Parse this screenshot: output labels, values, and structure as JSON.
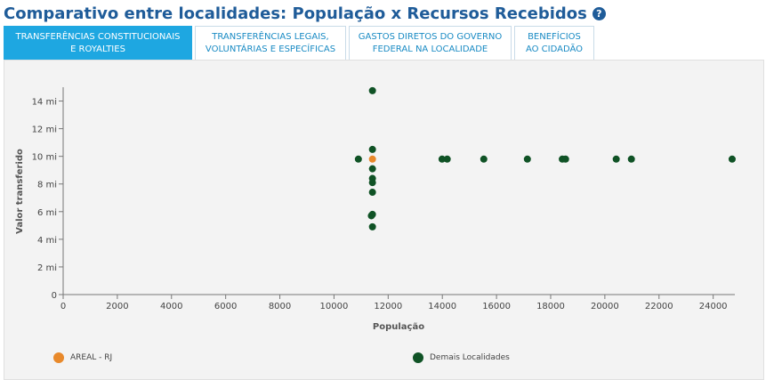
{
  "header": {
    "title": "Comparativo entre localidades: População x Recursos Recebidos",
    "help_icon": "question-circle-icon"
  },
  "tabs": [
    {
      "label": "TRANSFERÊNCIAS CONSTITUCIONAIS\nE ROYALTIES",
      "active": true
    },
    {
      "label": "TRANSFERÊNCIAS LEGAIS,\nVOLUNTÁRIAS E ESPECÍFICAS",
      "active": false
    },
    {
      "label": "GASTOS DIRETOS DO GOVERNO\nFEDERAL NA LOCALIDADE",
      "active": false
    },
    {
      "label": "BENEFÍCIOS\nAO CIDADÃO",
      "active": false
    }
  ],
  "colors": {
    "highlight": "#e8892b",
    "others": "#0f5225",
    "title": "#1f5c99",
    "tab_active_bg": "#1ea7e1"
  },
  "chart_data": {
    "type": "scatter",
    "xlabel": "População",
    "ylabel": "Valor transferido",
    "xlim": [
      0,
      24800
    ],
    "ylim": [
      0,
      15000000
    ],
    "x_ticks": [
      0,
      2000,
      4000,
      6000,
      8000,
      10000,
      12000,
      14000,
      16000,
      18000,
      20000,
      22000,
      24000
    ],
    "x_tick_labels": [
      "0",
      "2000",
      "4000",
      "6000",
      "8000",
      "10000",
      "12000",
      "14000",
      "16000",
      "18000",
      "20000",
      "22000",
      "24000"
    ],
    "y_ticks": [
      0,
      2000000,
      4000000,
      6000000,
      8000000,
      10000000,
      12000000,
      14000000
    ],
    "y_tick_labels": [
      "0",
      "2 mi",
      "4 mi",
      "6 mi",
      "8 mi",
      "10 mi",
      "12 mi",
      "14 mi"
    ],
    "grid": false,
    "legend_position": "bottom",
    "series": [
      {
        "name": "AREAL - RJ",
        "color": "#e8892b",
        "points": [
          {
            "x": 11420,
            "y": 9800000
          }
        ]
      },
      {
        "name": "Demais Localidades",
        "color": "#0f5225",
        "points": [
          {
            "x": 11420,
            "y": 14750000
          },
          {
            "x": 11420,
            "y": 10500000
          },
          {
            "x": 10900,
            "y": 9800000
          },
          {
            "x": 11420,
            "y": 9100000
          },
          {
            "x": 11420,
            "y": 8400000
          },
          {
            "x": 11420,
            "y": 8100000
          },
          {
            "x": 11420,
            "y": 7400000
          },
          {
            "x": 11420,
            "y": 5800000
          },
          {
            "x": 11380,
            "y": 5700000
          },
          {
            "x": 11420,
            "y": 4900000
          },
          {
            "x": 13990,
            "y": 9800000
          },
          {
            "x": 14180,
            "y": 9800000
          },
          {
            "x": 15530,
            "y": 9800000
          },
          {
            "x": 17140,
            "y": 9800000
          },
          {
            "x": 18430,
            "y": 9800000
          },
          {
            "x": 18550,
            "y": 9800000
          },
          {
            "x": 20420,
            "y": 9800000
          },
          {
            "x": 20980,
            "y": 9800000
          },
          {
            "x": 24700,
            "y": 9800000
          }
        ]
      }
    ]
  }
}
